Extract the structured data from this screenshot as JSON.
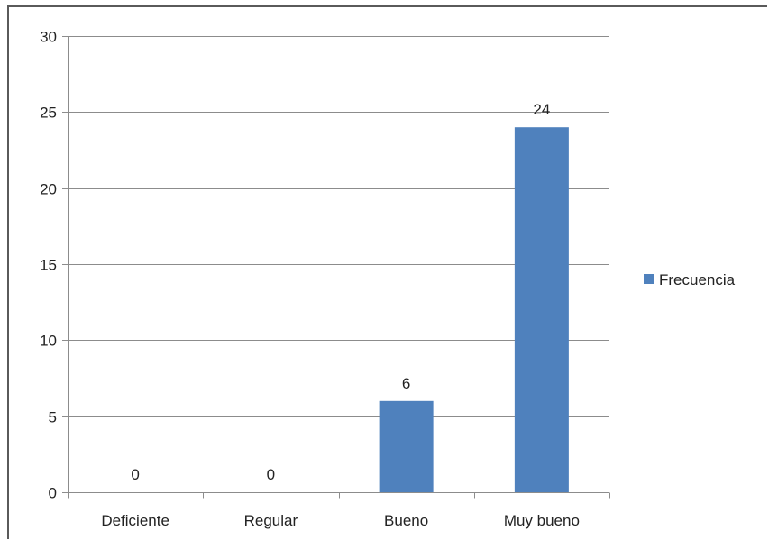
{
  "chart_data": {
    "type": "bar",
    "title": "",
    "xlabel": "",
    "ylabel": "",
    "categories": [
      "Deficiente",
      "Regular",
      "Bueno",
      "Muy bueno"
    ],
    "series": [
      {
        "name": "Frecuencia",
        "values": [
          0,
          0,
          6,
          24
        ],
        "color": "#4f81bd"
      }
    ],
    "ylim": [
      0,
      30
    ],
    "yticks": [
      0,
      5,
      10,
      15,
      20,
      25,
      30
    ],
    "grid": true,
    "legend_position": "right",
    "data_labels": true
  }
}
